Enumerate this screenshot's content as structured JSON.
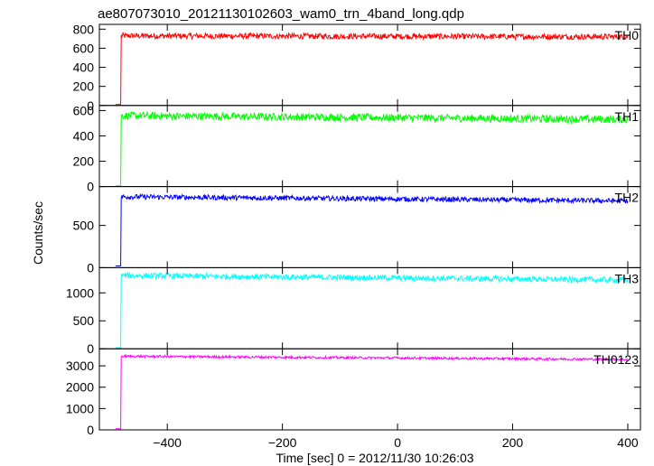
{
  "chart_data": {
    "type": "line",
    "title": "ae807073010_20121130102603_wam0_trn_4band_long.qdp",
    "xlabel": "Time [sec] 0 = 2012/11/30 10:26:03",
    "ylabel": "Counts/sec",
    "xlim": [
      -518,
      422
    ],
    "x_ticks": [
      -400,
      -200,
      0,
      200,
      400
    ],
    "x_tick_labels": [
      "−400",
      "−200",
      "0",
      "200",
      "400"
    ],
    "x_start": -490,
    "x_end": 400,
    "step_time": -480,
    "panels": [
      {
        "name": "TH0",
        "color": "#ff0000",
        "ylim": [
          0,
          850
        ],
        "yticks": [
          0,
          200,
          400,
          600,
          800
        ],
        "pre_level": 10,
        "level_start": 730,
        "level_end": 720,
        "noise": 30
      },
      {
        "name": "TH1",
        "color": "#00ff00",
        "ylim": [
          0,
          640
        ],
        "yticks": [
          0,
          200,
          400,
          600
        ],
        "pre_level": 5,
        "level_start": 560,
        "level_end": 530,
        "noise": 30
      },
      {
        "name": "TH2",
        "color": "#0000ff",
        "ylim": [
          0,
          960
        ],
        "yticks": [
          0,
          500
        ],
        "pre_level": 20,
        "level_start": 840,
        "level_end": 790,
        "noise": 30
      },
      {
        "name": "TH3",
        "color": "#00ffff",
        "ylim": [
          0,
          1450
        ],
        "yticks": [
          0,
          500,
          1000
        ],
        "pre_level": 20,
        "level_start": 1310,
        "level_end": 1230,
        "noise": 50
      },
      {
        "name": "TH0123",
        "color": "#ff00ff",
        "ylim": [
          0,
          3800
        ],
        "yticks": [
          0,
          1000,
          2000,
          3000
        ],
        "pre_level": 50,
        "level_start": 3450,
        "level_end": 3300,
        "noise": 55
      }
    ]
  }
}
